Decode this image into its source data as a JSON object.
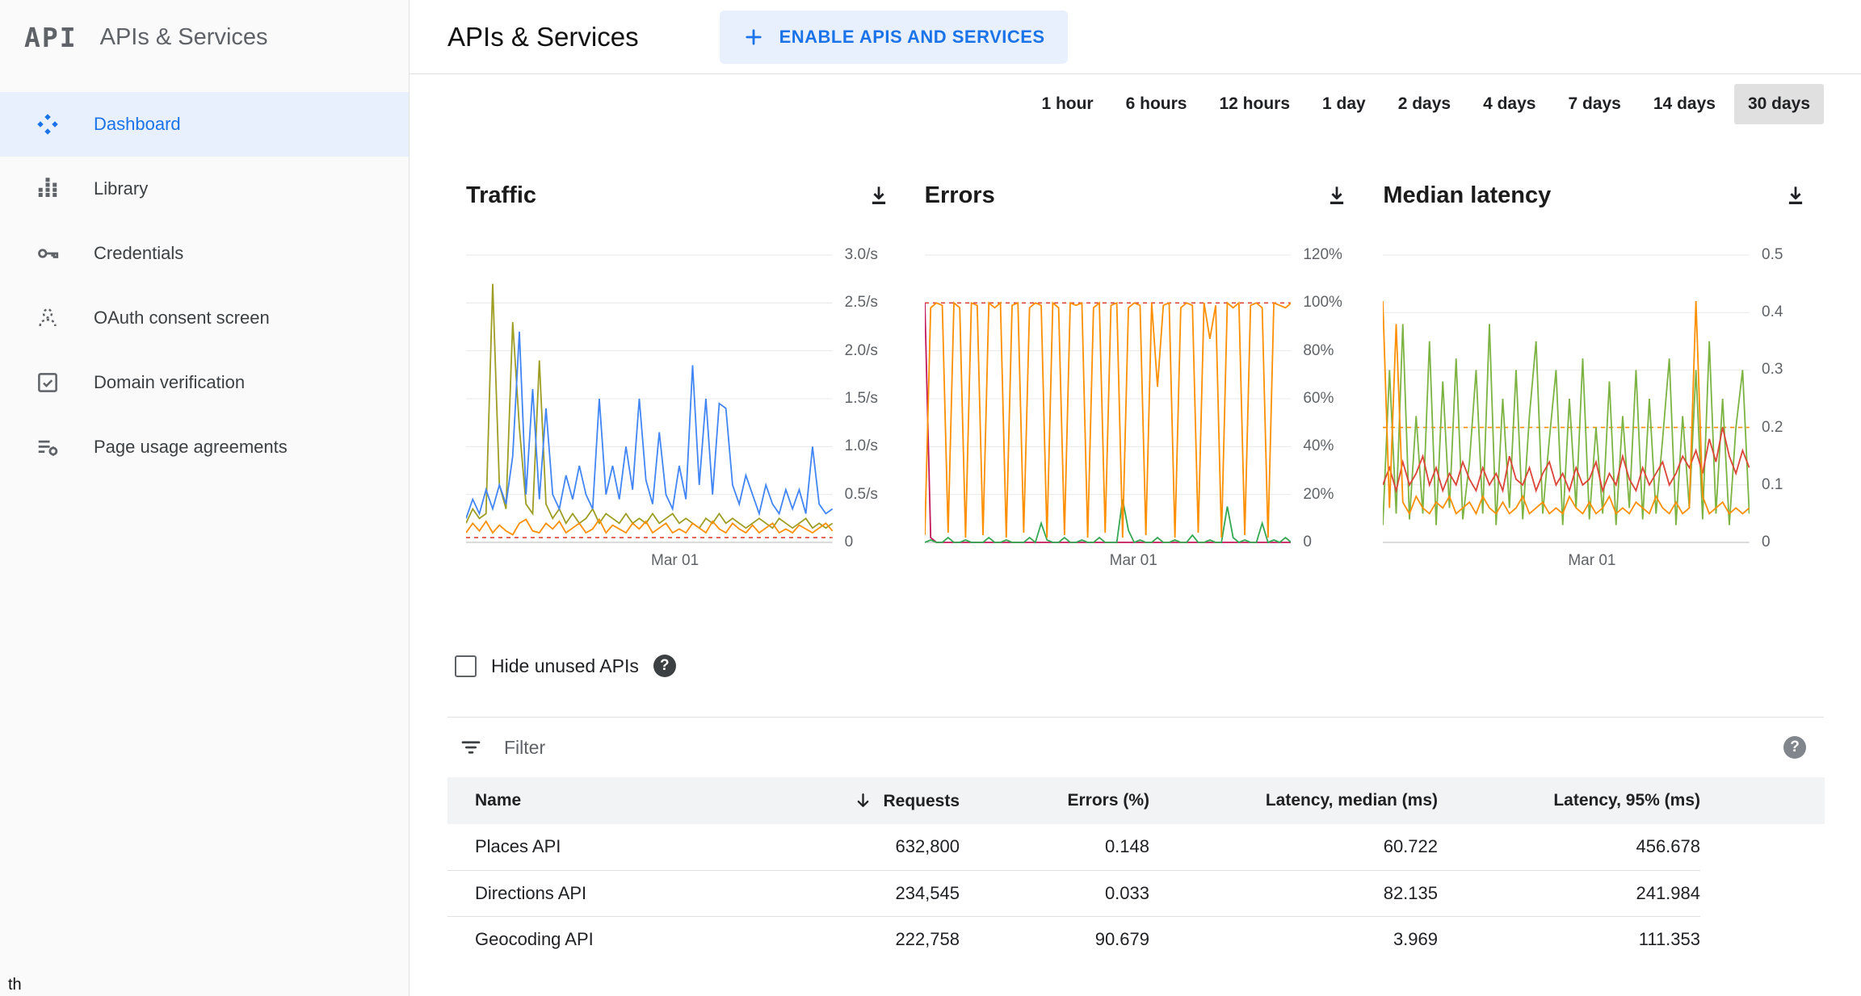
{
  "app": {
    "logo_text": "API",
    "sidebar_title": "APIs & Services"
  },
  "icons": {
    "help_glyph": "?"
  },
  "sidebar": {
    "items": [
      {
        "label": "Dashboard",
        "icon": "dashboard-icon",
        "active": true
      },
      {
        "label": "Library",
        "icon": "library-icon",
        "active": false
      },
      {
        "label": "Credentials",
        "icon": "key-icon",
        "active": false
      },
      {
        "label": "OAuth consent screen",
        "icon": "oauth-consent-icon",
        "active": false
      },
      {
        "label": "Domain verification",
        "icon": "domain-verification-icon",
        "active": false
      },
      {
        "label": "Page usage agreements",
        "icon": "page-usage-icon",
        "active": false
      }
    ]
  },
  "statusbar": {
    "partial_text": "th"
  },
  "header": {
    "title": "APIs & Services",
    "enable_button": "ENABLE APIS AND SERVICES"
  },
  "time_ranges": {
    "options": [
      "1 hour",
      "6 hours",
      "12 hours",
      "1 day",
      "2 days",
      "4 days",
      "7 days",
      "14 days",
      "30 days"
    ],
    "selected": "30 days"
  },
  "controls": {
    "hide_unused_label": "Hide unused APIs",
    "filter_placeholder": "Filter"
  },
  "chart_data": [
    {
      "type": "line",
      "title": "Traffic",
      "x_label": "Mar 01",
      "ylim": [
        0,
        3
      ],
      "ticks": [
        {
          "v": 3,
          "label": "3.0/s"
        },
        {
          "v": 2.5,
          "label": "2.5/s"
        },
        {
          "v": 2,
          "label": "2.0/s"
        },
        {
          "v": 1.5,
          "label": "1.5/s"
        },
        {
          "v": 1,
          "label": "1.0/s"
        },
        {
          "v": 0.5,
          "label": "0.5/s"
        },
        {
          "v": 0,
          "label": "0"
        }
      ],
      "ref_lines": [
        {
          "v": 0.05,
          "color": "#db4437"
        }
      ],
      "series": [
        {
          "name": "olive",
          "color": "#9e9d24",
          "values": [
            0.2,
            0.35,
            0.25,
            0.3,
            2.7,
            0.6,
            0.35,
            2.3,
            1.2,
            0.4,
            0.3,
            1.9,
            0.4,
            0.25,
            0.35,
            0.2,
            0.3,
            0.2,
            0.25,
            0.35,
            0.2,
            0.3,
            0.25,
            0.2,
            0.3,
            0.2,
            0.25,
            0.2,
            0.3,
            0.2,
            0.25,
            0.3,
            0.2,
            0.25,
            0.2,
            0.15,
            0.25,
            0.2,
            0.3,
            0.2,
            0.25,
            0.2,
            0.15,
            0.2,
            0.25,
            0.2,
            0.15,
            0.25,
            0.2,
            0.15,
            0.2,
            0.25,
            0.15,
            0.2,
            0.15,
            0.2
          ]
        },
        {
          "name": "blue",
          "color": "#4285f4",
          "values": [
            0.25,
            0.45,
            0.3,
            0.55,
            0.35,
            0.6,
            0.4,
            0.9,
            2.2,
            0.5,
            1.6,
            0.45,
            1.4,
            0.5,
            0.35,
            0.7,
            0.45,
            0.8,
            0.5,
            0.35,
            1.5,
            0.5,
            0.8,
            0.45,
            1.0,
            0.55,
            1.5,
            0.65,
            0.4,
            1.15,
            0.5,
            0.35,
            0.8,
            0.45,
            1.85,
            0.6,
            1.5,
            0.5,
            1.45,
            1.4,
            0.6,
            0.4,
            0.7,
            0.5,
            0.3,
            0.6,
            0.4,
            0.3,
            0.55,
            0.35,
            0.55,
            0.3,
            1.0,
            0.4,
            0.3,
            0.35
          ]
        },
        {
          "name": "orange",
          "color": "#ff8f00",
          "values": [
            0.1,
            0.2,
            0.12,
            0.22,
            0.1,
            0.18,
            0.12,
            0.08,
            0.2,
            0.24,
            0.12,
            0.1,
            0.2,
            0.14,
            0.22,
            0.1,
            0.15,
            0.2,
            0.1,
            0.14,
            0.24,
            0.1,
            0.18,
            0.14,
            0.1,
            0.2,
            0.14,
            0.22,
            0.1,
            0.15,
            0.2,
            0.1,
            0.14,
            0.1,
            0.2,
            0.15,
            0.1,
            0.22,
            0.14,
            0.1,
            0.2,
            0.14,
            0.1,
            0.18,
            0.1,
            0.15,
            0.2,
            0.1,
            0.14,
            0.1,
            0.18,
            0.14,
            0.1,
            0.15,
            0.2,
            0.12
          ]
        }
      ]
    },
    {
      "type": "line",
      "title": "Errors",
      "x_label": "Mar 01",
      "ylim": [
        0,
        120
      ],
      "ticks": [
        {
          "v": 120,
          "label": "120%"
        },
        {
          "v": 100,
          "label": "100%"
        },
        {
          "v": 80,
          "label": "80%"
        },
        {
          "v": 60,
          "label": "60%"
        },
        {
          "v": 40,
          "label": "40%"
        },
        {
          "v": 20,
          "label": "20%"
        },
        {
          "v": 0,
          "label": "0"
        }
      ],
      "ref_lines": [
        {
          "v": 100,
          "color": "#db4437"
        }
      ],
      "series": [
        {
          "name": "magenta",
          "color": "#c2185b",
          "values": [
            100,
            2,
            0,
            0,
            0,
            0,
            0,
            0,
            0,
            0,
            0,
            0,
            0,
            0,
            0,
            0,
            0,
            0,
            0,
            0,
            0,
            0,
            0,
            0,
            0,
            0,
            0,
            0,
            0,
            0,
            0,
            0,
            0,
            0,
            0,
            0,
            0,
            0,
            0,
            0,
            0,
            0,
            0,
            0,
            0,
            0,
            0,
            0,
            0,
            0,
            0,
            0,
            0,
            0,
            0,
            0,
            0,
            0,
            0,
            0,
            0,
            0,
            0,
            0
          ]
        },
        {
          "name": "green",
          "color": "#34a853",
          "values": [
            0,
            1,
            0,
            0,
            2,
            0,
            0,
            1,
            0,
            0,
            0,
            2,
            0,
            0,
            1,
            0,
            0,
            0,
            2,
            0,
            8,
            1,
            0,
            0,
            2,
            0,
            0,
            1,
            0,
            0,
            2,
            0,
            0,
            0,
            18,
            5,
            0,
            1,
            0,
            0,
            2,
            0,
            0,
            1,
            0,
            0,
            3,
            0,
            0,
            1,
            0,
            0,
            15,
            2,
            0,
            1,
            0,
            0,
            8,
            0,
            1,
            0,
            2,
            0
          ]
        },
        {
          "name": "orange",
          "color": "#ff8f00",
          "values": [
            3,
            98,
            100,
            99,
            4,
            100,
            98,
            2,
            100,
            99,
            3,
            100,
            98,
            100,
            2,
            99,
            100,
            4,
            98,
            100,
            99,
            2,
            100,
            98,
            3,
            100,
            99,
            100,
            2,
            98,
            100,
            4,
            99,
            100,
            2,
            98,
            100,
            99,
            3,
            100,
            65,
            99,
            100,
            2,
            98,
            100,
            99,
            4,
            100,
            85,
            99,
            2,
            100,
            98,
            100,
            3,
            99,
            100,
            98,
            2,
            100,
            99,
            98,
            100
          ]
        }
      ]
    },
    {
      "type": "line",
      "title": "Median latency",
      "x_label": "Mar 01",
      "ylim": [
        0,
        0.5
      ],
      "ticks": [
        {
          "v": 0.5,
          "label": "0.5"
        },
        {
          "v": 0.4,
          "label": "0.4"
        },
        {
          "v": 0.3,
          "label": "0.3"
        },
        {
          "v": 0.2,
          "label": "0.2"
        },
        {
          "v": 0.1,
          "label": "0.1"
        },
        {
          "v": 0,
          "label": "0"
        }
      ],
      "ref_lines": [
        {
          "v": 0.2,
          "color": "#ff8f00"
        }
      ],
      "series": [
        {
          "name": "green",
          "color": "#7cb342",
          "values": [
            0.03,
            0.3,
            0.05,
            0.38,
            0.04,
            0.22,
            0.05,
            0.35,
            0.03,
            0.28,
            0.06,
            0.32,
            0.04,
            0.14,
            0.3,
            0.05,
            0.38,
            0.03,
            0.25,
            0.06,
            0.3,
            0.04,
            0.22,
            0.35,
            0.05,
            0.18,
            0.3,
            0.03,
            0.25,
            0.06,
            0.32,
            0.04,
            0.2,
            0.05,
            0.28,
            0.03,
            0.22,
            0.06,
            0.3,
            0.04,
            0.25,
            0.05,
            0.18,
            0.32,
            0.03,
            0.22,
            0.06,
            0.3,
            0.04,
            0.35,
            0.05,
            0.25,
            0.03,
            0.2,
            0.3,
            0.05
          ]
        },
        {
          "name": "red",
          "color": "#db4437",
          "values": [
            0.1,
            0.13,
            0.09,
            0.14,
            0.1,
            0.12,
            0.15,
            0.1,
            0.13,
            0.09,
            0.12,
            0.1,
            0.14,
            0.11,
            0.09,
            0.13,
            0.1,
            0.12,
            0.09,
            0.15,
            0.11,
            0.1,
            0.13,
            0.09,
            0.12,
            0.14,
            0.1,
            0.12,
            0.09,
            0.13,
            0.1,
            0.11,
            0.14,
            0.09,
            0.12,
            0.1,
            0.15,
            0.11,
            0.09,
            0.13,
            0.1,
            0.12,
            0.14,
            0.1,
            0.12,
            0.15,
            0.13,
            0.16,
            0.12,
            0.18,
            0.14,
            0.2,
            0.15,
            0.12,
            0.16,
            0.13
          ]
        },
        {
          "name": "orange",
          "color": "#ff8f00",
          "values": [
            0.42,
            0.06,
            0.38,
            0.07,
            0.05,
            0.08,
            0.06,
            0.05,
            0.07,
            0.06,
            0.08,
            0.05,
            0.06,
            0.07,
            0.05,
            0.08,
            0.06,
            0.05,
            0.07,
            0.05,
            0.06,
            0.08,
            0.05,
            0.06,
            0.07,
            0.05,
            0.06,
            0.05,
            0.08,
            0.06,
            0.05,
            0.07,
            0.05,
            0.06,
            0.08,
            0.05,
            0.06,
            0.05,
            0.07,
            0.06,
            0.05,
            0.08,
            0.06,
            0.05,
            0.07,
            0.05,
            0.06,
            0.42,
            0.08,
            0.05,
            0.06,
            0.07,
            0.05,
            0.06,
            0.05,
            0.06
          ]
        }
      ]
    }
  ],
  "table": {
    "columns": [
      "Name",
      "Requests",
      "Errors (%)",
      "Latency, median (ms)",
      "Latency, 95% (ms)"
    ],
    "sorted_column": "Requests",
    "rows": [
      {
        "name": "Places API",
        "requests": "632,800",
        "errors": "0.148",
        "latency_median": "60.722",
        "latency_95": "456.678"
      },
      {
        "name": "Directions API",
        "requests": "234,545",
        "errors": "0.033",
        "latency_median": "82.135",
        "latency_95": "241.984"
      },
      {
        "name": "Geocoding API",
        "requests": "222,758",
        "errors": "90.679",
        "latency_median": "3.969",
        "latency_95": "111.353"
      }
    ]
  }
}
